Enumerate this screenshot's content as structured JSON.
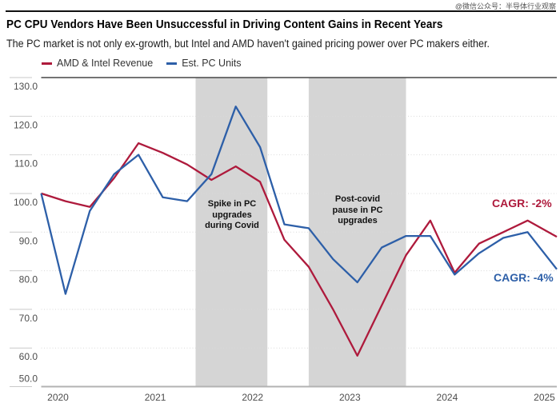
{
  "watermark": "@微信公众号：半导体行业观察",
  "title": "PC CPU Vendors Have Been Unsuccessful in Driving Content Gains in Recent Years",
  "subtitle": "The PC market is not only ex-growth, but Intel and AMD haven't gained pricing power over PC makers either.",
  "legend": [
    {
      "label": "AMD & Intel Revenue",
      "color": "#AE1A3C"
    },
    {
      "label": "Est. PC Units",
      "color": "#2D5FA8"
    }
  ],
  "colors": {
    "revenue_line": "#AE1A3C",
    "units_line": "#2D5FA8",
    "band": "#D5D5D5",
    "gridline": "#d9d9d9",
    "tick": "#c9c9c9",
    "plot_top_border": "#474747",
    "x_axis_line": "#b3b3b3"
  },
  "chart_data": {
    "type": "line",
    "x_unit": "quarter",
    "x_start": "2020 Q1",
    "x_end": "2025 Q2",
    "ylim": [
      50,
      130
    ],
    "grid": "dotted-horizontal",
    "legend_position": "top-left",
    "y_ticks": [
      {
        "value": 50,
        "label": "50.0"
      },
      {
        "value": 60,
        "label": "60.0"
      },
      {
        "value": 70,
        "label": "70.0"
      },
      {
        "value": 80,
        "label": "80.0"
      },
      {
        "value": 90,
        "label": "90.0"
      },
      {
        "value": 100,
        "label": "100.0"
      },
      {
        "value": 110,
        "label": "110.0"
      },
      {
        "value": 120,
        "label": "120.0"
      },
      {
        "value": 130,
        "label": "130.0"
      }
    ],
    "x_year_labels": [
      {
        "label": "2020",
        "q": 0.69
      },
      {
        "label": "2021",
        "q": 4.69
      },
      {
        "label": "2022",
        "q": 8.69
      },
      {
        "label": "2023",
        "q": 12.69
      },
      {
        "label": "2024",
        "q": 16.69
      },
      {
        "label": "2025",
        "q": 20.69
      }
    ],
    "series": [
      {
        "name": "AMD & Intel Revenue",
        "color": "#AE1A3C",
        "values": [
          100,
          98,
          96.5,
          104,
          113,
          110.5,
          107.5,
          103.5,
          107,
          103,
          88,
          81,
          70,
          58,
          71,
          84,
          93,
          79.5,
          87,
          90,
          93,
          89.5
        ]
      },
      {
        "name": "Est. PC Units",
        "color": "#2D5FA8",
        "values": [
          100,
          74,
          95.5,
          105,
          110,
          99,
          98,
          105,
          122.5,
          112,
          92,
          91,
          83,
          77,
          86,
          89,
          89,
          79,
          84.5,
          88.5,
          90,
          82
        ]
      }
    ],
    "bands": [
      {
        "from_q": 6.35,
        "to_q": 9.3,
        "label": "Spike in PC\nupgrades\nduring Covid"
      },
      {
        "from_q": 11.0,
        "to_q": 15.0,
        "label": "Post-covid\npause in PC\nupgrades"
      }
    ],
    "cagr_labels": [
      {
        "text": "CAGR: -2%",
        "series": "AMD & Intel Revenue",
        "color": "#AE1A3C"
      },
      {
        "text": "CAGR: -4%",
        "series": "Est. PC Units",
        "color": "#2D5FA8"
      }
    ]
  }
}
